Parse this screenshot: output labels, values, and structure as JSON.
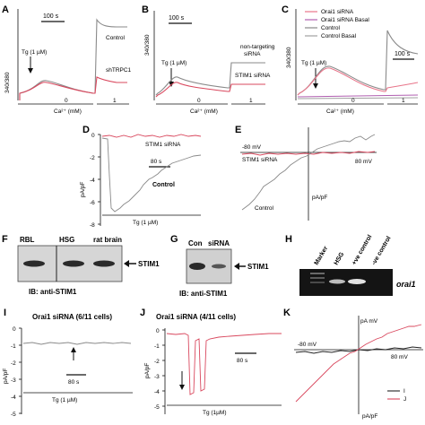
{
  "panels": {
    "A": {
      "letter": "A",
      "scale": "100 s",
      "ylabel": "340/380",
      "stim": "Tg (1 µM)",
      "label_control": "Control",
      "label_shtrpc1": "shTRPC1",
      "ca_label": "Ca²⁺ (mM)",
      "ca_0": "0",
      "ca_1": "1"
    },
    "B": {
      "letter": "B",
      "scale": "100 s",
      "ylabel": "340/380",
      "stim": "Tg (1 µM)",
      "label_nt_1": "non-targeting",
      "label_nt_2": "siRNA",
      "label_stim1": "STIM1 siRNA",
      "ca_label": "Ca²⁺ (mM)",
      "ca_0": "0",
      "ca_1": "1"
    },
    "C": {
      "letter": "C",
      "scale": "100 s",
      "ylabel": "340/380",
      "stim": "Tg (1 µM)",
      "legend": [
        "Orai1 siRNA",
        "Orai1 siRNA Basal",
        "Control",
        "Control Basal"
      ],
      "legend_colors": [
        "#e8758a",
        "#b05fb0",
        "#888888",
        "#a0a0a0"
      ],
      "ca_label": "Ca²⁺ (mM)",
      "ca_0": "0",
      "ca_1": "1"
    },
    "D": {
      "letter": "D",
      "ylabel": "pA/pF",
      "yticks": [
        "0",
        "-2",
        "-4",
        "-6",
        "-8"
      ],
      "label_stim1": "STIM1 siRNA",
      "scale": "80 s",
      "label_control": "Control",
      "stim": "Tg (1 µM)"
    },
    "E": {
      "letter": "E",
      "neg": "-80 mV",
      "pos": "80 mV",
      "label_stim1": "STIM1 siRNA",
      "label_control": "Control",
      "units": "pA/pF"
    },
    "F": {
      "letter": "F",
      "lanes": [
        "RBL",
        "HSG",
        "rat brain"
      ],
      "arrow": "STIM1",
      "ib": "IB:  anti-STIM1"
    },
    "G": {
      "letter": "G",
      "lanes": [
        "Con",
        "siRNA"
      ],
      "arrow": "STIM1",
      "ib": "IB: anti-STIM1"
    },
    "H": {
      "letter": "H",
      "lanes": [
        "Marker",
        "HSG",
        "+ve control",
        "-ve control"
      ],
      "gene": "orai1"
    },
    "I": {
      "letter": "I",
      "title": "Orai1 siRNA (6/11 cells)",
      "ylabel": "pA/pF",
      "yticks": [
        "0",
        "-1",
        "-2",
        "-3",
        "-4",
        "-5"
      ],
      "scale": "80 s",
      "stim": "Tg (1 µM)"
    },
    "J": {
      "letter": "J",
      "title": "Orai1 siRNA  (4/11 cells)",
      "ylabel": "pA/pF",
      "yticks": [
        "0",
        "-1",
        "-2",
        "-3",
        "-4",
        "-5"
      ],
      "scale": "80 s",
      "stim": "Tg (1µM)"
    },
    "K": {
      "letter": "K",
      "pos_mv": "pA mV",
      "neg": "-80 mV",
      "pos": "80 mV",
      "legend": [
        "I",
        "J"
      ],
      "units": "pA/pF"
    }
  },
  "colors": {
    "trace_gray": "#8a8a8a",
    "trace_red": "#d9485e",
    "trace_black": "#222222"
  }
}
